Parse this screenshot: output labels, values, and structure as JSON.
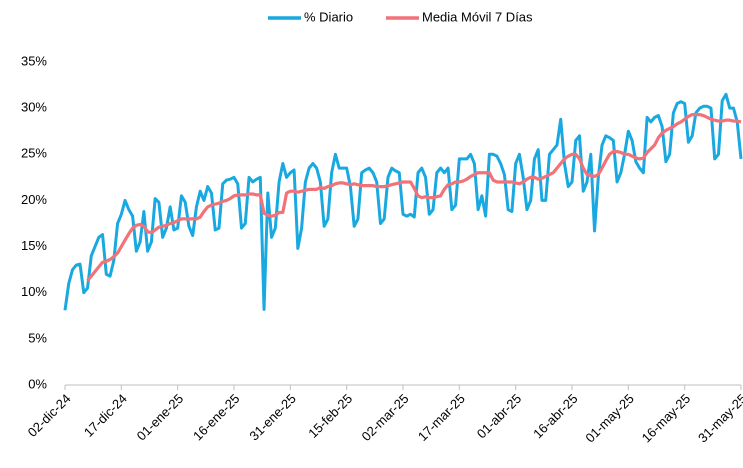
{
  "chart_data": {
    "type": "line",
    "categories": [
      "02-dic-24",
      null,
      null,
      null,
      null,
      null,
      null,
      null,
      null,
      null,
      null,
      null,
      null,
      null,
      null,
      "17-dic-24",
      null,
      null,
      null,
      null,
      null,
      null,
      null,
      null,
      null,
      null,
      null,
      null,
      null,
      null,
      "01-ene-25",
      null,
      null,
      null,
      null,
      null,
      null,
      null,
      null,
      null,
      null,
      null,
      null,
      null,
      null,
      "16-ene-25",
      null,
      null,
      null,
      null,
      null,
      null,
      null,
      null,
      null,
      null,
      null,
      null,
      null,
      null,
      "31-ene-25",
      null,
      null,
      null,
      null,
      null,
      null,
      null,
      null,
      null,
      null,
      null,
      null,
      null,
      null,
      "15-feb-25",
      null,
      null,
      null,
      null,
      null,
      null,
      null,
      null,
      null,
      null,
      null,
      null,
      null,
      null,
      "02-mar-25",
      null,
      null,
      null,
      null,
      null,
      null,
      null,
      null,
      null,
      null,
      null,
      null,
      null,
      null,
      "17-mar-25",
      null,
      null,
      null,
      null,
      null,
      null,
      null,
      null,
      null,
      null,
      null,
      null,
      null,
      null,
      "01-abr-25",
      null,
      null,
      null,
      null,
      null,
      null,
      null,
      null,
      null,
      null,
      null,
      null,
      null,
      null,
      "16-abr-25",
      null,
      null,
      null,
      null,
      null,
      null,
      null,
      null,
      null,
      null,
      null,
      null,
      null,
      null,
      "01-may-25",
      null,
      null,
      null,
      null,
      null,
      null,
      null,
      null,
      null,
      null,
      null,
      null,
      null,
      null,
      "16-may-25",
      null,
      null,
      null,
      null,
      null,
      null,
      null,
      null,
      null,
      null,
      null,
      null,
      null,
      null,
      "31-may-25"
    ],
    "series": [
      {
        "name": "% Diario",
        "color": "#19a9e0",
        "values": [
          8.1,
          11,
          12.5,
          13,
          13.1,
          10,
          10.5,
          14,
          15,
          16,
          16.3,
          12,
          11.8,
          13.5,
          17.5,
          18.5,
          20,
          19,
          18.3,
          14.5,
          15.5,
          18.8,
          14.5,
          15.5,
          20.2,
          19.8,
          16,
          17,
          19.3,
          16.8,
          17,
          20.5,
          19.8,
          17.2,
          16.2,
          19.3,
          21,
          20,
          21.5,
          20.8,
          16.8,
          17,
          21.8,
          22.2,
          22.3,
          22.5,
          21.8,
          17,
          17.5,
          22.5,
          22,
          22.3,
          22.5,
          8.2,
          20.8,
          16,
          17,
          22,
          24,
          22.5,
          23,
          23.3,
          14.8,
          17,
          22,
          23.5,
          24,
          23.5,
          22,
          17.2,
          18,
          23,
          25,
          23.5,
          23.5,
          23.5,
          21.5,
          17.2,
          18,
          23,
          23.3,
          23.5,
          23,
          22,
          17.5,
          18,
          22.5,
          23.5,
          23.2,
          23,
          18.5,
          18.3,
          18.5,
          18.2,
          23,
          23.5,
          22.5,
          18.5,
          19,
          23,
          23.5,
          23,
          23.5,
          19,
          19.5,
          24.5,
          24.5,
          24.5,
          25,
          24,
          19,
          20.5,
          18.3,
          25,
          25,
          24.8,
          24,
          22.8,
          19,
          18.8,
          24,
          25,
          22.5,
          19,
          20,
          24.5,
          25.5,
          20,
          20,
          25,
          25.5,
          26,
          28.8,
          24,
          21.5,
          22,
          26.5,
          27,
          21,
          22,
          25,
          16.7,
          22.5,
          26,
          27,
          26.8,
          26.5,
          22,
          23,
          25,
          27.5,
          26.5,
          24.2,
          23.5,
          23,
          29,
          28.5,
          29,
          29.2,
          28,
          24.2,
          25,
          29.5,
          30.5,
          30.7,
          30.5,
          26.3,
          27,
          29.5,
          30,
          30.2,
          30.2,
          30,
          24.5,
          25,
          30.8,
          31.5,
          30,
          30,
          28.5,
          24.5
        ]
      },
      {
        "name": "Media Móvil 7 Días",
        "color": "#f2727a",
        "values": [
          null,
          null,
          null,
          null,
          null,
          null,
          11.3,
          11.8,
          12.3,
          12.8,
          13.3,
          13.4,
          13.6,
          13.9,
          14.3,
          15,
          15.7,
          16.4,
          17,
          17.3,
          17.4,
          17.2,
          16.6,
          16.5,
          16.8,
          17.1,
          17.2,
          17.3,
          17.5,
          17.6,
          17.8,
          18,
          18,
          18,
          18,
          18,
          18.2,
          18.8,
          19.3,
          19.5,
          19.6,
          19.7,
          19.9,
          20,
          20.2,
          20.5,
          20.6,
          20.6,
          20.6,
          20.7,
          20.7,
          20.6,
          20.6,
          18.6,
          18.4,
          18.3,
          18.4,
          18.7,
          18.7,
          20.8,
          21,
          21,
          20.9,
          21,
          21.1,
          21.2,
          21.2,
          21.2,
          21.4,
          21.3,
          21.5,
          21.6,
          21.8,
          21.9,
          21.9,
          21.8,
          21.7,
          21.8,
          21.7,
          21.6,
          21.6,
          21.6,
          21.6,
          21.5,
          21.5,
          21.5,
          21.6,
          21.7,
          21.8,
          21.9,
          22,
          22,
          22,
          21.3,
          20.5,
          20.3,
          20.4,
          20.3,
          20.3,
          20.4,
          20.5,
          21.2,
          21.7,
          21.8,
          22,
          22,
          22.1,
          22.3,
          22.6,
          22.8,
          23,
          23,
          23,
          23,
          22.2,
          22,
          22,
          22,
          22,
          22,
          21.9,
          21.8,
          22,
          22.3,
          22.5,
          22.5,
          22.3,
          22.4,
          22.6,
          22.8,
          23,
          23.5,
          24,
          24.5,
          24.8,
          25,
          25,
          24.5,
          23.5,
          22.8,
          22.7,
          22.6,
          22.8,
          23.5,
          24.3,
          25,
          25.3,
          25.3,
          25.2,
          25,
          25,
          24.8,
          24.6,
          24.5,
          24.6,
          25.2,
          25.6,
          26,
          26.8,
          27.3,
          27.6,
          27.8,
          28,
          28.3,
          28.5,
          28.8,
          29.1,
          29.3,
          29.3,
          29.3,
          29.2,
          29,
          28.8,
          28.7,
          28.6,
          28.6,
          28.7,
          28.7,
          28.6,
          28.6,
          28.5
        ]
      }
    ],
    "ylim": [
      0,
      35
    ],
    "yticks": [
      {
        "value": 0,
        "label": "0%"
      },
      {
        "value": 5,
        "label": "5%"
      },
      {
        "value": 10,
        "label": "10%"
      },
      {
        "value": 15,
        "label": "15%"
      },
      {
        "value": 20,
        "label": "20%"
      },
      {
        "value": 25,
        "label": "25%"
      },
      {
        "value": 30,
        "label": "30%"
      },
      {
        "value": 35,
        "label": "35%"
      }
    ],
    "grid": false,
    "legend": "top"
  }
}
